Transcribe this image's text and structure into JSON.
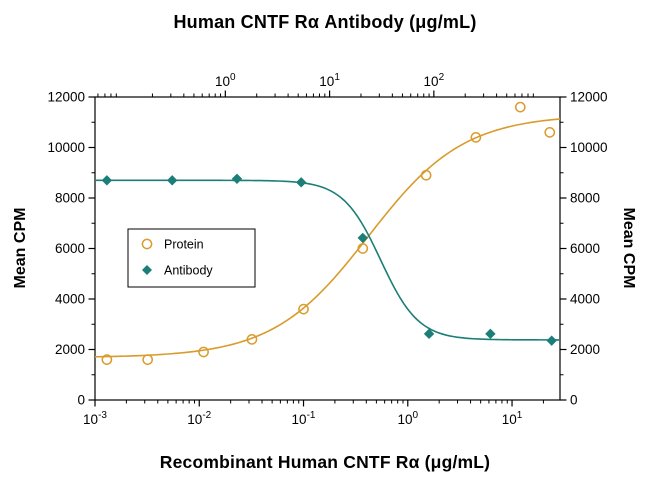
{
  "chart_data": {
    "type": "scatter",
    "curve_fit": "4-parameter-logistic",
    "top_axis": {
      "title": "Human CNTF Rα Antibody (μg/mL)",
      "scale": "log",
      "min_exp": -1.25,
      "max_exp": 3.21,
      "major_tick_exps": [
        0,
        1,
        2
      ]
    },
    "bottom_axis": {
      "title": "Recombinant Human CNTF Rα (μg/mL)",
      "scale": "log",
      "min_exp": -3,
      "max_exp": 1.46,
      "major_tick_exps": [
        -3,
        -2,
        -1,
        0,
        1
      ]
    },
    "left_axis": {
      "title": "Mean CPM",
      "min": 0,
      "max": 12000,
      "major_step": 2000,
      "minor_step": 1000,
      "major_tick_values": [
        0,
        2000,
        4000,
        6000,
        8000,
        10000,
        12000
      ]
    },
    "right_axis": {
      "title": "Mean CPM",
      "mirrors": "left_axis"
    },
    "legend": {
      "position": "inside-left-middle",
      "border": true
    },
    "series": [
      {
        "name": "Protein",
        "marker": "open-circle",
        "color": "#D99B2B",
        "points": [
          [
            0.0013,
            1600
          ],
          [
            0.0032,
            1600
          ],
          [
            0.011,
            1900
          ],
          [
            0.032,
            2400
          ],
          [
            0.1,
            3600
          ],
          [
            0.37,
            6000
          ],
          [
            1.5,
            8900
          ],
          [
            4.5,
            10400
          ],
          [
            12,
            11600
          ],
          [
            23,
            10600
          ]
        ],
        "fit": {
          "min": 1680,
          "max": 11300,
          "ec50": 0.42,
          "hill": 0.95
        }
      },
      {
        "name": "Antibody",
        "marker": "filled-diamond",
        "color": "#1B7E78",
        "points": [
          [
            0.0013,
            8700
          ],
          [
            0.0055,
            8700
          ],
          [
            0.023,
            8760
          ],
          [
            0.095,
            8620
          ],
          [
            0.37,
            6420
          ],
          [
            1.6,
            2620
          ],
          [
            6.2,
            2620
          ],
          [
            24,
            2350
          ]
        ],
        "fit": {
          "min": 2380,
          "max": 8700,
          "ec50": 0.55,
          "hill": -2.4
        }
      }
    ]
  }
}
